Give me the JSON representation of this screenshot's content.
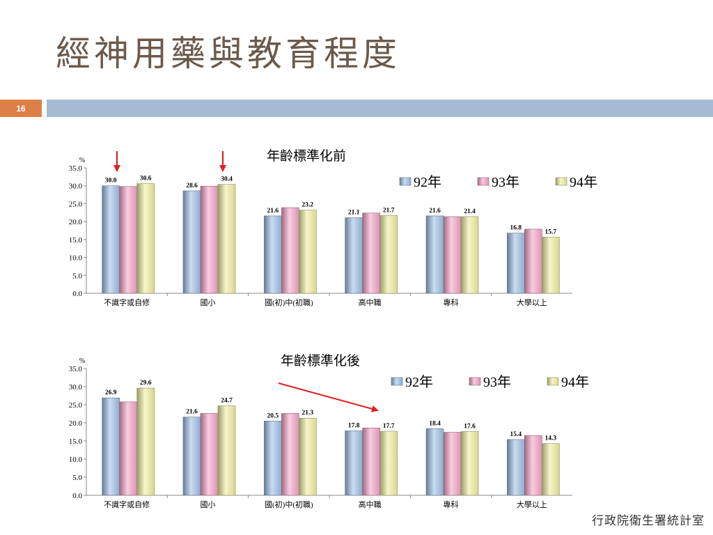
{
  "slide": {
    "title": "經神用藥與教育程度",
    "page_number": "16",
    "footer": "行政院衛生署統計室"
  },
  "colors": {
    "92": "#9ec0e6",
    "93": "#f5a3c8",
    "94": "#efefa0",
    "title_bar": "#a4bbd3",
    "page_box": "#dd8048",
    "arrow": "#e02020"
  },
  "chart_data": [
    {
      "type": "bar",
      "title": "年齡標準化前",
      "ylabel": "%",
      "ylim": [
        0,
        35
      ],
      "yticks": [
        "0.0",
        "5.0",
        "10.0",
        "15.0",
        "20.0",
        "25.0",
        "30.0",
        "35.0"
      ],
      "categories": [
        "不識字或自修",
        "國小",
        "國(初)中(初職)",
        "高中職",
        "專科",
        "大學以上"
      ],
      "series": [
        {
          "name": "92年",
          "values": [
            30.0,
            28.6,
            21.6,
            21.1,
            21.6,
            16.8
          ]
        },
        {
          "name": "93年",
          "values": [
            29.8,
            29.9,
            23.9,
            22.4,
            21.4,
            17.9
          ]
        },
        {
          "name": "94年",
          "values": [
            30.6,
            30.4,
            23.2,
            21.7,
            21.4,
            15.7
          ]
        }
      ],
      "data_labels": [
        {
          "category": 0,
          "series": 0,
          "text": "30.0"
        },
        {
          "category": 0,
          "series": 2,
          "text": "30.6"
        },
        {
          "category": 1,
          "series": 0,
          "text": "28.6"
        },
        {
          "category": 1,
          "series": 2,
          "text": "30.4"
        },
        {
          "category": 2,
          "series": 0,
          "text": "21.6"
        },
        {
          "category": 2,
          "series": 2,
          "text": "23.2"
        },
        {
          "category": 3,
          "series": 0,
          "text": "21.1"
        },
        {
          "category": 3,
          "series": 2,
          "text": "21.7"
        },
        {
          "category": 4,
          "series": 0,
          "text": "21.6"
        },
        {
          "category": 4,
          "series": 2,
          "text": "21.4"
        },
        {
          "category": 5,
          "series": 0,
          "text": "16.8"
        },
        {
          "category": 5,
          "series": 2,
          "text": "15.7"
        }
      ],
      "legend": "top-right",
      "annotations": [
        {
          "type": "arrow-down",
          "category": 0
        },
        {
          "type": "arrow-down",
          "category": 1
        }
      ]
    },
    {
      "type": "bar",
      "title": "年齡標準化後",
      "ylabel": "%",
      "ylim": [
        0,
        35
      ],
      "yticks": [
        "0.0",
        "5.0",
        "10.0",
        "15.0",
        "20.0",
        "25.0",
        "30.0",
        "35.0"
      ],
      "categories": [
        "不識字或自修",
        "國小",
        "國(初)中(初職)",
        "高中職",
        "專科",
        "大學以上"
      ],
      "series": [
        {
          "name": "92年",
          "values": [
            26.9,
            21.6,
            20.5,
            17.8,
            18.4,
            15.4
          ]
        },
        {
          "name": "93年",
          "values": [
            25.8,
            22.6,
            22.6,
            18.6,
            17.4,
            16.5
          ]
        },
        {
          "name": "94年",
          "values": [
            29.6,
            24.7,
            21.3,
            17.7,
            17.6,
            14.3
          ]
        }
      ],
      "data_labels": [
        {
          "category": 0,
          "series": 0,
          "text": "26.9"
        },
        {
          "category": 0,
          "series": 2,
          "text": "29.6"
        },
        {
          "category": 1,
          "series": 0,
          "text": "21.6"
        },
        {
          "category": 1,
          "series": 2,
          "text": "24.7"
        },
        {
          "category": 2,
          "series": 0,
          "text": "20.5"
        },
        {
          "category": 2,
          "series": 2,
          "text": "21.3"
        },
        {
          "category": 3,
          "series": 0,
          "text": "17.8"
        },
        {
          "category": 3,
          "series": 2,
          "text": "17.7"
        },
        {
          "category": 4,
          "series": 0,
          "text": "18.4"
        },
        {
          "category": 4,
          "series": 2,
          "text": "17.6"
        },
        {
          "category": 5,
          "series": 0,
          "text": "15.4"
        },
        {
          "category": 5,
          "series": 2,
          "text": "14.3"
        }
      ],
      "legend": "top-right",
      "annotations": [
        {
          "type": "arrow-diagonal",
          "category": 3
        }
      ]
    }
  ]
}
